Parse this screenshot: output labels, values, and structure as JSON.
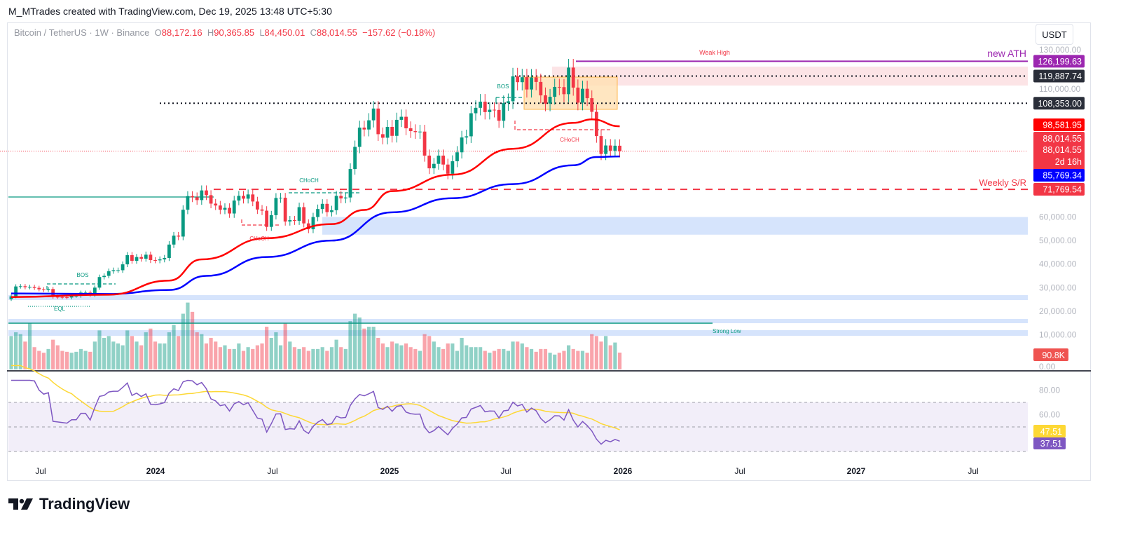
{
  "credit": "M_MTrades created with TradingView.com, Dec 19, 2025 13:48 UTC+5:30",
  "legend": {
    "symbol": "Bitcoin / TetherUS · 1W · Binance",
    "o_label": "O",
    "o": "88,172.16",
    "h_label": "H",
    "h": "90,365.85",
    "l_label": "L",
    "l": "84,450.01",
    "c_label": "C",
    "c": "88,014.55",
    "change": "−157.62 (−0.18%)"
  },
  "currency_button": "USDT",
  "logo_text": "TradingView",
  "price_axis": [
    "130,000.00",
    "110,000.00",
    "60,000.00",
    "50,000.00",
    "40,000.00",
    "30,000.00",
    "20,000.00",
    "10,000.00",
    "0.00"
  ],
  "rsi_axis": [
    "80.00",
    "60.00"
  ],
  "time_axis": [
    "Jul",
    "2024",
    "Jul",
    "2025",
    "Jul",
    "2026",
    "Jul",
    "2027",
    "Jul"
  ],
  "price_labels": {
    "ath": "126,199.63",
    "weak_high_level": "119,887.74",
    "level_108k": "108,353.00",
    "ma_red": "98,581.95",
    "last_price": "88,014.55",
    "close": "88,014.55",
    "countdown": "2d 16h",
    "ma_blue": "85,769.34",
    "weekly_sr": "71,769.54",
    "volume": "90.8K",
    "rsi_ma": "47.51",
    "rsi": "37.51"
  },
  "annotations": {
    "new_ath": "new ATH",
    "weak_high": "Weak High",
    "weekly_sr": "Weekly S/R",
    "strong_low": "Strong Low",
    "bos_2025": "BOS",
    "choch_2025": "CHoCH",
    "choch_2024_bull": "CHoCH",
    "choch_2024_bear": "CHoCH",
    "bos_2023": "BOS",
    "eql": "EQL"
  },
  "colors": {
    "up": "#089981",
    "down": "#f23645",
    "ma_red": "#ff0000",
    "ma_blue": "#0000ff",
    "ath": "#9c27b0",
    "rsi": "#7e57c2",
    "rsi_ma": "#fdd835",
    "zone": "#d6e4fc",
    "supply": "#fce4e6",
    "box": "#ffe0b2"
  },
  "chart_data": {
    "type": "candlestick",
    "interval": "1W",
    "start_week": "2023-06-12",
    "first_open": 25.1,
    "price_unit": "USDT thousands",
    "close": [
      26.3,
      30.5,
      30.6,
      30.2,
      30.3,
      29.9,
      29.3,
      29.0,
      29.4,
      26.1,
      26.0,
      25.9,
      25.8,
      26.5,
      26.5,
      27.9,
      27.9,
      26.9,
      30.0,
      34.5,
      35.0,
      37.0,
      37.4,
      37.4,
      39.9,
      43.8,
      41.4,
      43.0,
      42.3,
      44.0,
      41.7,
      41.6,
      42.0,
      42.6,
      48.3,
      52.1,
      51.7,
      63.1,
      68.9,
      68.4,
      67.2,
      71.3,
      69.3,
      65.7,
      64.9,
      63.1,
      63.9,
      61.5,
      67.0,
      69.0,
      67.8,
      69.6,
      66.6,
      63.2,
      62.7,
      55.8,
      60.8,
      68.1,
      68.2,
      58.1,
      58.7,
      58.4,
      64.2,
      57.3,
      54.8,
      60.0,
      63.4,
      65.6,
      62.1,
      62.9,
      69.0,
      67.9,
      68.3,
      80.4,
      89.8,
      98.0,
      97.2,
      101.1,
      106.1,
      95.2,
      93.7,
      98.3,
      94.5,
      101.3,
      102.6,
      97.7,
      96.5,
      96.1,
      96.3,
      86.1,
      80.7,
      82.6,
      86.1,
      82.3,
      78.4,
      83.7,
      87.5,
      93.8,
      94.3,
      104.1,
      106.4,
      109.0,
      104.6,
      105.6,
      105.5,
      100.9,
      108.4,
      109.2,
      119.8,
      117.3,
      119.4,
      114.2,
      119.3,
      117.4,
      111.7,
      108.2,
      111.1,
      115.3,
      115.2,
      112.2,
      123.5,
      115.0,
      108.6,
      114.5,
      110.5,
      104.7,
      94.4,
      86.8,
      90.4,
      88.2,
      90.3,
      88.0
    ],
    "volume_k": [
      180,
      200,
      190,
      150,
      250,
      120,
      100,
      90,
      110,
      160,
      130,
      100,
      95,
      90,
      95,
      110,
      100,
      95,
      150,
      210,
      170,
      180,
      150,
      140,
      130,
      210,
      180,
      150,
      130,
      200,
      220,
      150,
      140,
      140,
      200,
      240,
      180,
      300,
      360,
      310,
      200,
      190,
      140,
      170,
      150,
      120,
      130,
      110,
      110,
      140,
      100,
      120,
      110,
      130,
      140,
      230,
      170,
      200,
      130,
      250,
      150,
      120,
      110,
      120,
      100,
      110,
      110,
      120,
      100,
      120,
      160,
      120,
      110,
      260,
      300,
      280,
      220,
      230,
      230,
      170,
      140,
      120,
      150,
      140,
      130,
      140,
      120,
      110,
      100,
      190,
      180,
      150,
      120,
      110,
      140,
      140,
      100,
      170,
      130,
      120,
      120,
      120,
      100,
      90,
      100,
      110,
      110,
      100,
      150,
      150,
      140,
      120,
      110,
      95,
      110,
      110,
      90,
      80,
      90,
      100,
      130,
      110,
      100,
      100,
      90,
      190,
      180,
      150,
      180,
      130,
      145,
      90.8
    ],
    "ma_red": [
      [
        "2023-06-12",
        26.0
      ],
      [
        "2023-11-06",
        27.0
      ],
      [
        "2024-02-05",
        33
      ],
      [
        "2024-03-25",
        42
      ],
      [
        "2024-07-01",
        51
      ],
      [
        "2024-10-07",
        57
      ],
      [
        "2024-11-25",
        63
      ],
      [
        "2025-01-06",
        71
      ],
      [
        "2025-04-07",
        78
      ],
      [
        "2025-07-07",
        89
      ],
      [
        "2025-10-06",
        100
      ],
      [
        "2025-11-03",
        101.5
      ],
      [
        "2025-12-15",
        98.58
      ]
    ],
    "ma_blue": [
      [
        "2023-06-12",
        27.5
      ],
      [
        "2023-11-06",
        27.3
      ],
      [
        "2024-02-05",
        29
      ],
      [
        "2024-04-01",
        35
      ],
      [
        "2024-07-01",
        43
      ],
      [
        "2024-10-07",
        50
      ],
      [
        "2025-01-06",
        62
      ],
      [
        "2025-04-07",
        68
      ],
      [
        "2025-07-07",
        74
      ],
      [
        "2025-10-06",
        82
      ],
      [
        "2025-11-10",
        85.5
      ],
      [
        "2025-12-15",
        85.77
      ]
    ],
    "price_ylim": [
      0,
      130000
    ],
    "price_scale": "linear",
    "levels": {
      "ath": 126199.63,
      "weak_high": 119887.74,
      "level_108k": 108353.0,
      "weekly_sr": 71769.54,
      "last": 88014.55
    },
    "rsi_levels": [
      70,
      50,
      30
    ],
    "rsi_period": 14,
    "grid": false
  }
}
